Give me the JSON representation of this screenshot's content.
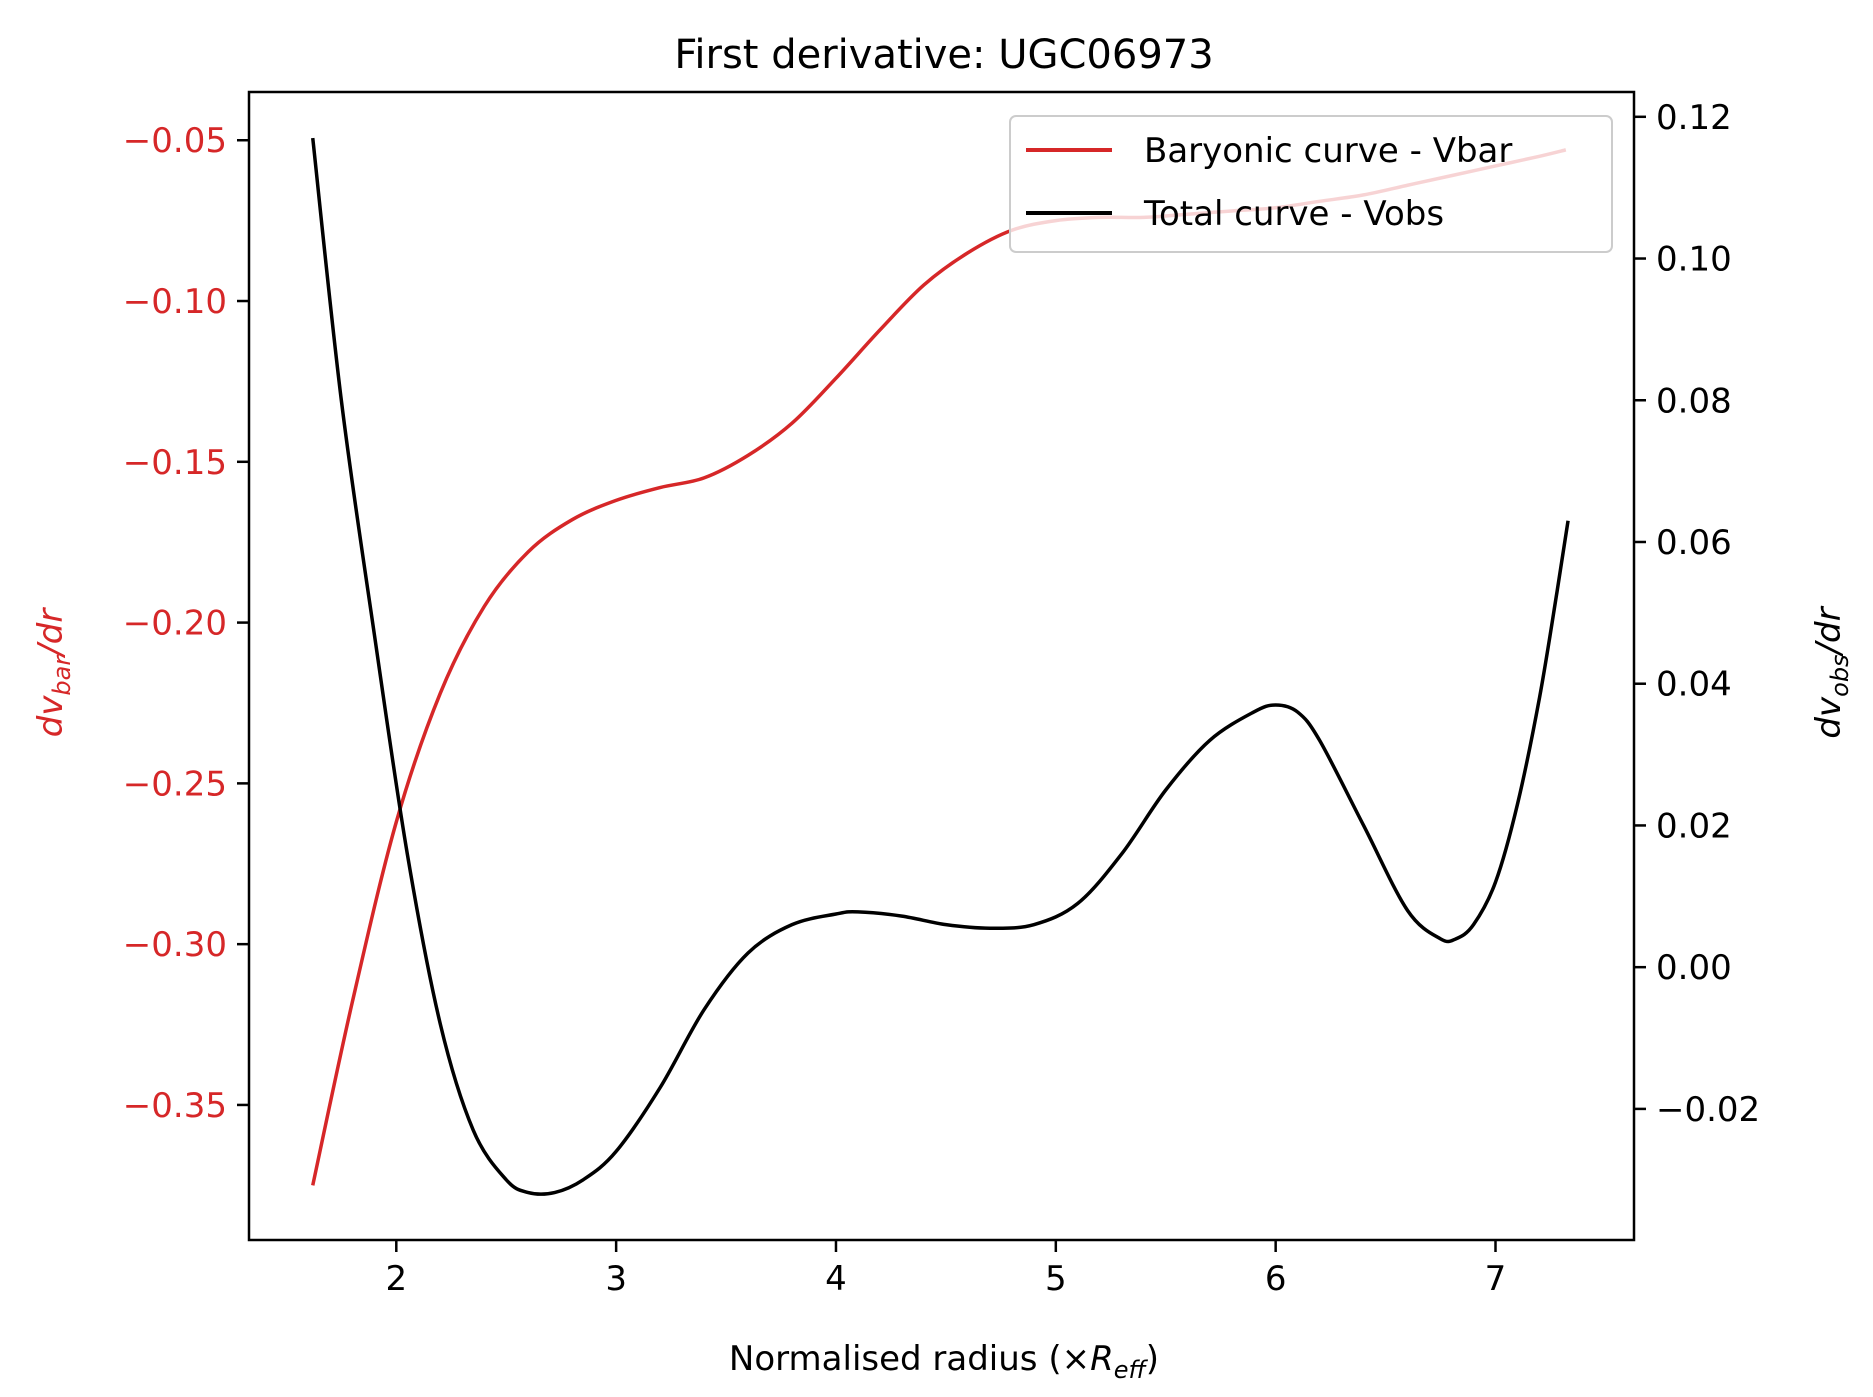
{
  "chart_data": {
    "type": "line",
    "title": "First derivative: UGC06973",
    "xlabel": "Normalised radius (×R_eff)",
    "xlabel_prefix": "Normalised radius (×",
    "xlabel_symbol": "R",
    "xlabel_sub": "eff",
    "xlabel_suffix": ")",
    "ylabel_left": "dv_bar/dr",
    "ylabel_left_main": "dv",
    "ylabel_left_sub": "bar",
    "ylabel_left_tail": "/dr",
    "ylabel_right": "dv_obs/dr",
    "ylabel_right_main": "dv",
    "ylabel_right_sub": "obs",
    "ylabel_right_tail": "/dr",
    "xlim": [
      1.33,
      7.63
    ],
    "ylim_left": [
      -0.392,
      -0.035
    ],
    "ylim_right": [
      -0.0385,
      0.1235
    ],
    "xticks": [
      2,
      3,
      4,
      5,
      6,
      7
    ],
    "xtick_labels": [
      "2",
      "3",
      "4",
      "5",
      "6",
      "7"
    ],
    "yticks_left": [
      -0.35,
      -0.3,
      -0.25,
      -0.2,
      -0.15,
      -0.1,
      -0.05
    ],
    "ytick_labels_left": [
      "−0.35",
      "−0.30",
      "−0.25",
      "−0.20",
      "−0.15",
      "−0.10",
      "−0.05"
    ],
    "yticks_right": [
      -0.02,
      0.0,
      0.02,
      0.04,
      0.06,
      0.08,
      0.1,
      0.12
    ],
    "ytick_labels_right": [
      "−0.02",
      "0.00",
      "0.02",
      "0.04",
      "0.06",
      "0.08",
      "0.10",
      "0.12"
    ],
    "legend_position": "top-right",
    "grid": false,
    "colors": {
      "left_axis": "#d62728",
      "bar_series": "#d62728",
      "obs_series": "#000000"
    },
    "series": [
      {
        "name": "Baryonic curve - Vbar",
        "axis": "left",
        "color": "#d62728",
        "x": [
          1.62,
          1.8,
          2.0,
          2.2,
          2.4,
          2.6,
          2.8,
          3.0,
          3.2,
          3.4,
          3.6,
          3.8,
          4.0,
          4.2,
          4.4,
          4.6,
          4.8,
          5.0,
          5.2,
          5.4,
          5.6,
          5.8,
          6.0,
          6.2,
          6.4,
          6.6,
          6.8,
          7.0,
          7.2,
          7.32
        ],
        "y": [
          -0.375,
          -0.318,
          -0.262,
          -0.222,
          -0.195,
          -0.178,
          -0.168,
          -0.162,
          -0.158,
          -0.155,
          -0.148,
          -0.138,
          -0.124,
          -0.109,
          -0.095,
          -0.085,
          -0.078,
          -0.075,
          -0.074,
          -0.074,
          -0.073,
          -0.072,
          -0.071,
          -0.069,
          -0.067,
          -0.064,
          -0.061,
          -0.058,
          -0.055,
          -0.053
        ]
      },
      {
        "name": "Total curve - Vobs",
        "axis": "right",
        "color": "#000000",
        "x": [
          1.62,
          1.75,
          1.9,
          2.05,
          2.2,
          2.35,
          2.5,
          2.6,
          2.72,
          2.85,
          3.0,
          3.2,
          3.4,
          3.6,
          3.8,
          4.0,
          4.1,
          4.3,
          4.5,
          4.7,
          4.9,
          5.1,
          5.3,
          5.5,
          5.7,
          5.9,
          6.0,
          6.1,
          6.2,
          6.4,
          6.6,
          6.75,
          6.82,
          6.9,
          7.0,
          7.1,
          7.2,
          7.28,
          7.33
        ],
        "y": [
          0.117,
          0.08,
          0.047,
          0.016,
          -0.008,
          -0.023,
          -0.03,
          -0.0318,
          -0.0318,
          -0.03,
          -0.026,
          -0.017,
          -0.006,
          0.002,
          0.006,
          0.0075,
          0.0078,
          0.0072,
          0.006,
          0.0055,
          0.006,
          0.009,
          0.016,
          0.025,
          0.032,
          0.036,
          0.037,
          0.036,
          0.032,
          0.02,
          0.008,
          0.004,
          0.004,
          0.006,
          0.012,
          0.023,
          0.038,
          0.053,
          0.063
        ]
      }
    ]
  }
}
